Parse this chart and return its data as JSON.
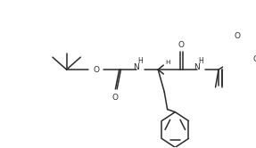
{
  "bg_color": "#ffffff",
  "line_color": "#2a2a2a",
  "line_width": 1.1,
  "font_size": 6.5,
  "figsize": [
    2.87,
    1.66
  ],
  "dpi": 100,
  "xlim": [
    0,
    287
  ],
  "ylim": [
    0,
    166
  ]
}
